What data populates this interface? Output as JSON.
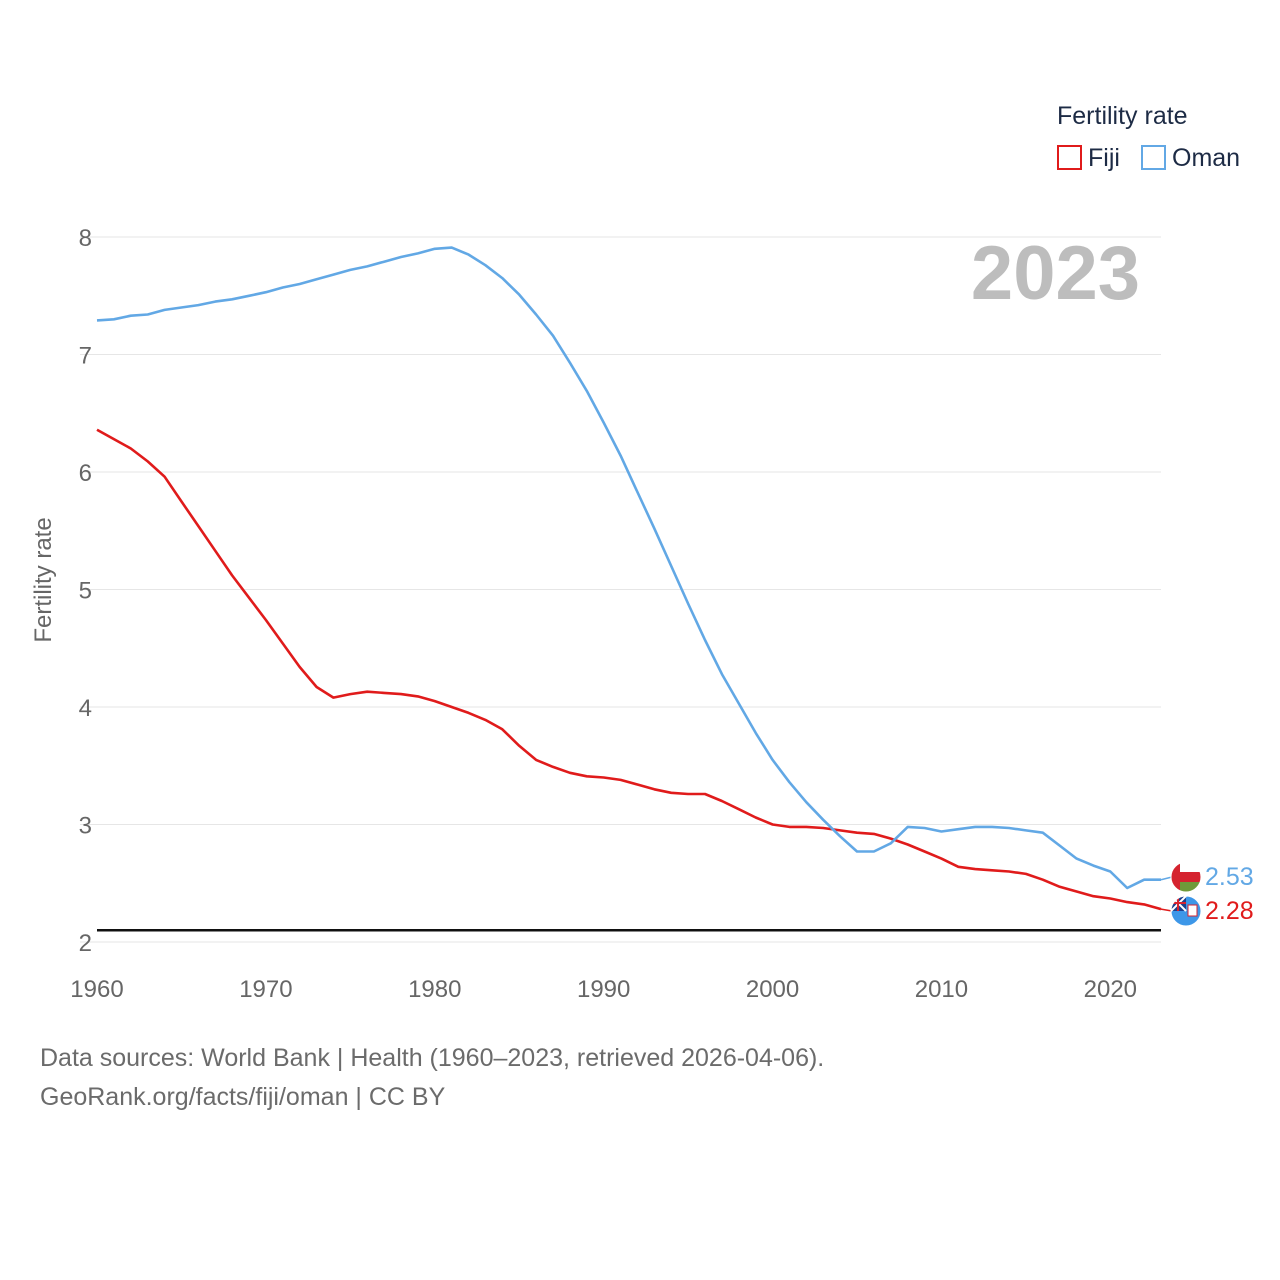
{
  "chart_data": {
    "type": "line",
    "year_label": "2023",
    "ylabel": "Fertility rate",
    "xlabel": "",
    "xlim": [
      1960,
      2023
    ],
    "ylim": [
      2,
      8
    ],
    "x_ticks": [
      1960,
      1970,
      1980,
      1990,
      2000,
      2010,
      2020
    ],
    "y_ticks": [
      2,
      3,
      4,
      5,
      6,
      7,
      8
    ],
    "reference_line": 2.1,
    "legend": {
      "title": "Fertility rate",
      "position": "top-right"
    },
    "x": [
      1960,
      1961,
      1962,
      1963,
      1964,
      1965,
      1966,
      1967,
      1968,
      1969,
      1970,
      1971,
      1972,
      1973,
      1974,
      1975,
      1976,
      1977,
      1978,
      1979,
      1980,
      1981,
      1982,
      1983,
      1984,
      1985,
      1986,
      1987,
      1988,
      1989,
      1990,
      1991,
      1992,
      1993,
      1994,
      1995,
      1996,
      1997,
      1998,
      1999,
      2000,
      2001,
      2002,
      2003,
      2004,
      2005,
      2006,
      2007,
      2008,
      2009,
      2010,
      2011,
      2012,
      2013,
      2014,
      2015,
      2016,
      2017,
      2018,
      2019,
      2020,
      2021,
      2022,
      2023
    ],
    "series": [
      {
        "name": "Fiji",
        "color": "#e01b1b",
        "end_label": "2.28",
        "flag": "fiji-flag-icon",
        "values": [
          6.36,
          6.28,
          6.2,
          6.09,
          5.96,
          5.75,
          5.54,
          5.33,
          5.12,
          4.93,
          4.74,
          4.54,
          4.34,
          4.17,
          4.08,
          4.11,
          4.13,
          4.12,
          4.11,
          4.09,
          4.05,
          4.0,
          3.95,
          3.89,
          3.81,
          3.67,
          3.55,
          3.49,
          3.44,
          3.41,
          3.4,
          3.38,
          3.34,
          3.3,
          3.27,
          3.26,
          3.26,
          3.2,
          3.13,
          3.06,
          3.0,
          2.98,
          2.98,
          2.97,
          2.95,
          2.93,
          2.92,
          2.88,
          2.83,
          2.77,
          2.71,
          2.64,
          2.62,
          2.61,
          2.6,
          2.58,
          2.53,
          2.47,
          2.43,
          2.39,
          2.37,
          2.34,
          2.32,
          2.28
        ]
      },
      {
        "name": "Oman",
        "color": "#62a8e5",
        "end_label": "2.53",
        "flag": "oman-flag-icon",
        "values": [
          7.29,
          7.3,
          7.33,
          7.34,
          7.38,
          7.4,
          7.42,
          7.45,
          7.47,
          7.5,
          7.53,
          7.57,
          7.6,
          7.64,
          7.68,
          7.72,
          7.75,
          7.79,
          7.83,
          7.86,
          7.9,
          7.91,
          7.85,
          7.76,
          7.65,
          7.51,
          7.34,
          7.16,
          6.93,
          6.69,
          6.42,
          6.14,
          5.83,
          5.52,
          5.2,
          4.88,
          4.57,
          4.28,
          4.03,
          3.78,
          3.55,
          3.36,
          3.19,
          3.04,
          2.9,
          2.77,
          2.77,
          2.84,
          2.98,
          2.97,
          2.94,
          2.96,
          2.98,
          2.98,
          2.97,
          2.95,
          2.93,
          2.82,
          2.71,
          2.65,
          2.6,
          2.46,
          2.53,
          2.53
        ]
      }
    ]
  },
  "footer": {
    "line1": "Data sources: World Bank | Health (1960–2023, retrieved 2026-04-06).",
    "line2": "GeoRank.org/facts/fiji/oman | CC BY"
  }
}
